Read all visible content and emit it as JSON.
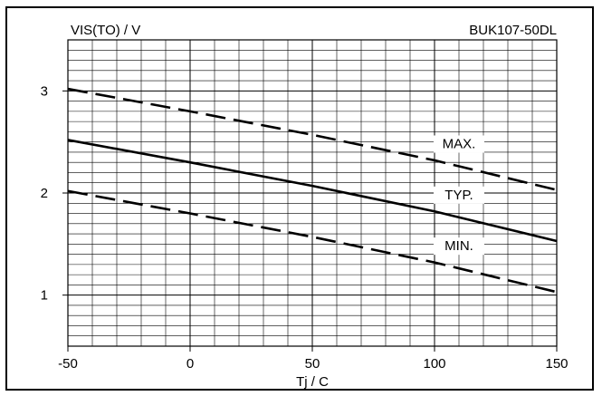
{
  "chart_data": {
    "type": "line",
    "title": "BUK107-50DL",
    "ylabel": "VIS(TO) / V",
    "xlabel": "Tj / C",
    "xlim": [
      -50,
      150
    ],
    "ylim": [
      0.5,
      3.5
    ],
    "grid": true,
    "x_ticks": [
      -50,
      0,
      50,
      100,
      150
    ],
    "x_tick_labels": [
      "-50",
      "0",
      "50",
      "100",
      "150"
    ],
    "y_ticks": [
      1,
      2,
      3
    ],
    "y_tick_labels": [
      "1",
      "2",
      "3"
    ],
    "series": [
      {
        "name": "MAX.",
        "style": "dashed",
        "x": [
          -50,
          0,
          50,
          100,
          150
        ],
        "y": [
          3.02,
          2.8,
          2.57,
          2.32,
          2.03
        ]
      },
      {
        "name": "TYP.",
        "style": "solid",
        "x": [
          -50,
          0,
          50,
          100,
          150
        ],
        "y": [
          2.52,
          2.3,
          2.07,
          1.82,
          1.53
        ]
      },
      {
        "name": "MIN.",
        "style": "dashed",
        "x": [
          -50,
          0,
          50,
          100,
          150
        ],
        "y": [
          2.02,
          1.8,
          1.57,
          1.32,
          1.03
        ]
      }
    ]
  }
}
